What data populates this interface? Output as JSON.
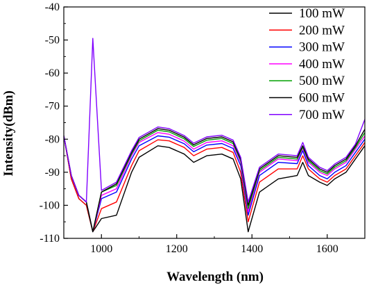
{
  "chart_data": {
    "type": "line",
    "title": "",
    "xlabel": "Wavelength (nm)",
    "ylabel": "Intensity(dBm)",
    "xlim": [
      900,
      1700
    ],
    "ylim": [
      -110,
      -40
    ],
    "x_ticks": [
      1000,
      1200,
      1400,
      1600
    ],
    "y_ticks": [
      -110,
      -100,
      -90,
      -80,
      -70,
      -60,
      -50,
      -40
    ],
    "x_tick_labels": [
      "1000",
      "1200",
      "1400",
      "1600"
    ],
    "y_tick_labels": [
      "-110",
      "-100",
      "-90",
      "-80",
      "-70",
      "-60",
      "-50",
      "-40"
    ],
    "grid": false,
    "legend_position": "top-right",
    "x": [
      900,
      920,
      940,
      960,
      977,
      1000,
      1040,
      1080,
      1100,
      1150,
      1180,
      1220,
      1245,
      1280,
      1320,
      1350,
      1370,
      1390,
      1420,
      1470,
      1520,
      1535,
      1550,
      1580,
      1600,
      1620,
      1650,
      1675,
      1700
    ],
    "series": [
      {
        "name": "100 mW",
        "color": "#000000",
        "values": [
          -79,
          -92,
          -98,
          -100,
          -108,
          -104,
          -103,
          -90,
          -85.5,
          -82,
          -82.5,
          -84.5,
          -87,
          -85,
          -84.5,
          -86,
          -92,
          -108,
          -96,
          -92,
          -91,
          -87,
          -91,
          -93,
          -94,
          -92,
          -90,
          -86,
          -82
        ]
      },
      {
        "name": "200 mW",
        "color": "#ff0000",
        "values": [
          -79,
          -92,
          -98,
          -100,
          -108,
          -101,
          -99,
          -88,
          -83.5,
          -80.2,
          -80.5,
          -82.5,
          -85,
          -83,
          -82.5,
          -84,
          -90,
          -105,
          -93,
          -89,
          -89,
          -85,
          -89,
          -92,
          -93,
          -91,
          -89,
          -85,
          -81
        ]
      },
      {
        "name": "300 mW",
        "color": "#0000ff",
        "values": [
          -79,
          -91,
          -97,
          -99,
          -108,
          -98,
          -96,
          -86,
          -82,
          -79,
          -79.4,
          -81.4,
          -83.8,
          -81.8,
          -81.3,
          -82.8,
          -88,
          -103,
          -91,
          -87,
          -87.4,
          -83.5,
          -88,
          -91,
          -92,
          -90,
          -88,
          -84,
          -80
        ]
      },
      {
        "name": "400 mW",
        "color": "#ff00ff",
        "values": [
          -79,
          -91,
          -97,
          -99,
          -108,
          -97,
          -95,
          -85,
          -81,
          -78,
          -78.5,
          -80.6,
          -83,
          -81,
          -80.5,
          -82,
          -87,
          -102,
          -90,
          -86,
          -86.5,
          -82.8,
          -87,
          -90,
          -91,
          -89,
          -87,
          -83,
          -79
        ]
      },
      {
        "name": "500 mW",
        "color": "#00a000",
        "values": [
          -79,
          -91,
          -97,
          -99,
          -108,
          -96,
          -94,
          -84.5,
          -80.5,
          -77.3,
          -77.8,
          -79.9,
          -82.2,
          -80.3,
          -79.8,
          -81.3,
          -86.5,
          -101,
          -89.5,
          -85.5,
          -86,
          -82.4,
          -86.5,
          -89.5,
          -90.5,
          -88.5,
          -86.5,
          -82.5,
          -78
        ]
      },
      {
        "name": "600 mW",
        "color": "#000000",
        "values": [
          -79,
          -91,
          -97,
          -99,
          -108,
          -96,
          -93.5,
          -84,
          -80,
          -76.8,
          -77.3,
          -79.4,
          -81.7,
          -79.8,
          -79.3,
          -80.8,
          -86,
          -100,
          -89,
          -85,
          -85.5,
          -82,
          -86,
          -89,
          -90,
          -88,
          -86,
          -82,
          -77
        ]
      },
      {
        "name": "700 mW",
        "color": "#8000ff",
        "values": [
          -79,
          -91,
          -97,
          -99,
          -49.5,
          -95.5,
          -93,
          -83.5,
          -79.5,
          -76.3,
          -76.8,
          -78.9,
          -81.2,
          -79.3,
          -78.8,
          -80.3,
          -85.5,
          -99,
          -88.5,
          -84.5,
          -85,
          -81,
          -85.5,
          -88.5,
          -89.5,
          -87.5,
          -85.5,
          -81.5,
          -74
        ]
      }
    ]
  }
}
